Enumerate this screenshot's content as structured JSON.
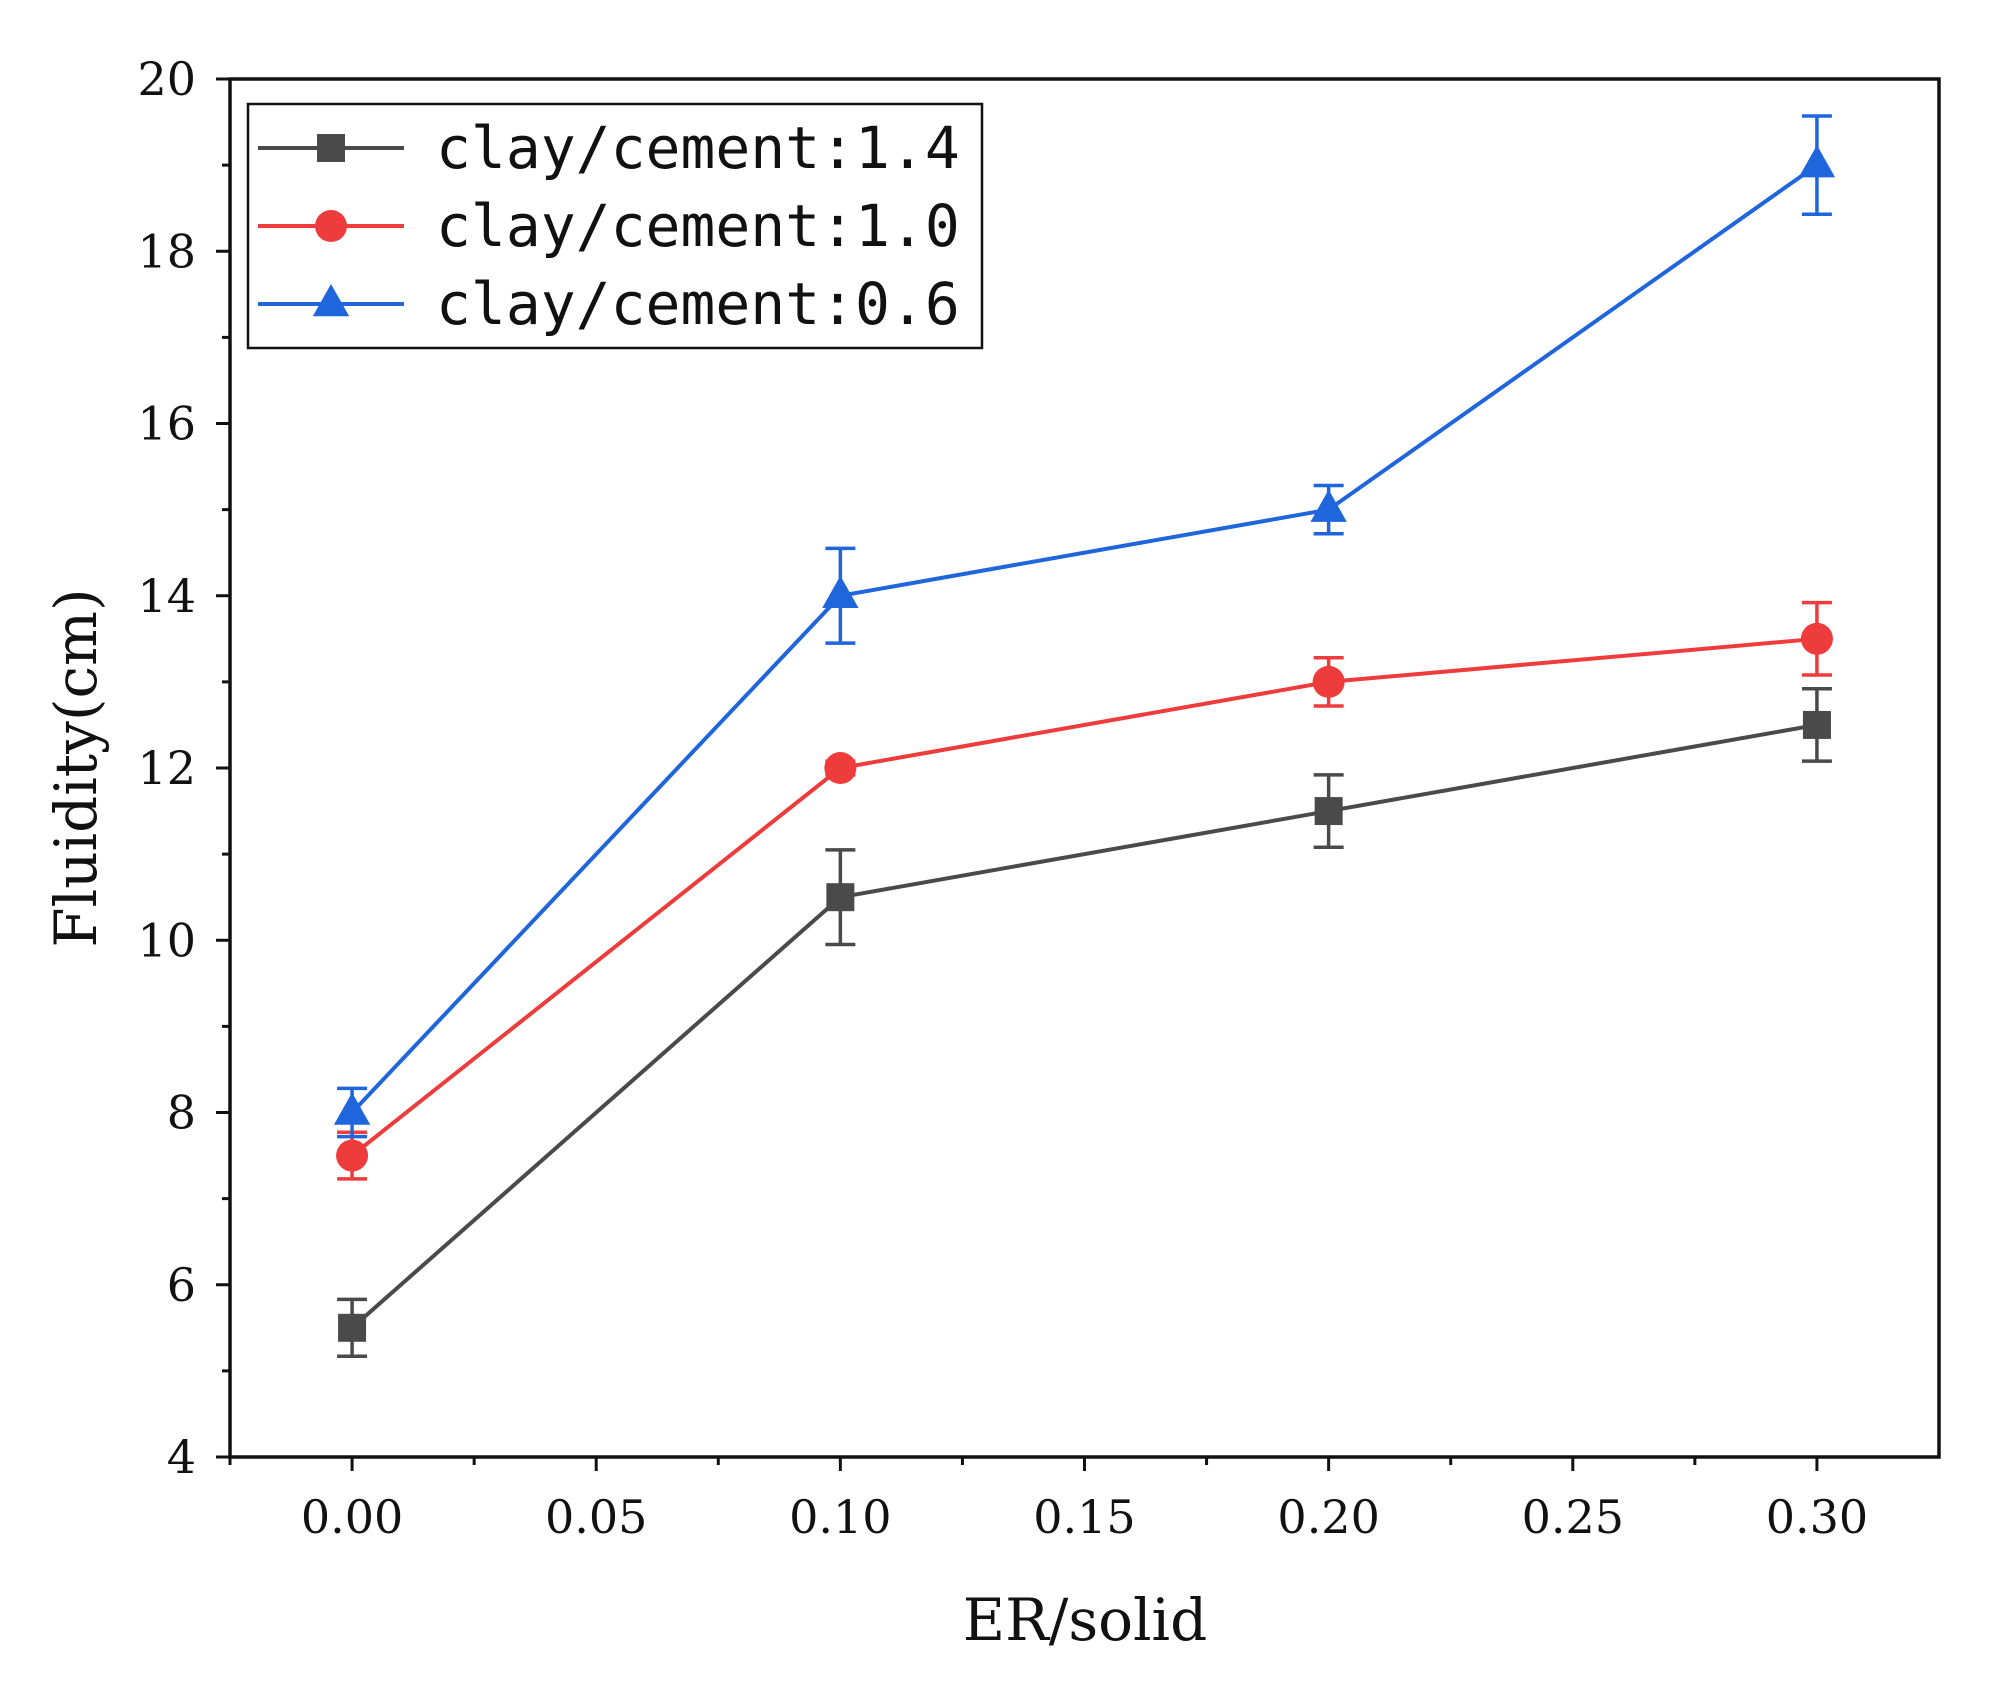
{
  "chart_data": {
    "type": "line",
    "title": "",
    "xlabel": "ER/solid",
    "ylabel": "Fluidity(cm)",
    "xlim": [
      -0.025,
      0.325
    ],
    "ylim": [
      4,
      20
    ],
    "x": [
      0.0,
      0.1,
      0.2,
      0.3
    ],
    "xticks": [
      0.0,
      0.05,
      0.1,
      0.15,
      0.2,
      0.25,
      0.3
    ],
    "xtick_labels": [
      "0.00",
      "0.05",
      "0.10",
      "0.15",
      "0.20",
      "0.25",
      "0.30"
    ],
    "yticks": [
      4,
      6,
      8,
      10,
      12,
      14,
      16,
      18,
      20
    ],
    "ytick_labels": [
      "4",
      "6",
      "8",
      "10",
      "12",
      "14",
      "16",
      "18",
      "20"
    ],
    "grid": false,
    "legend_position": "top-left",
    "series": [
      {
        "name": "clay/cement:1.4",
        "color": "#4a4a4a",
        "marker": "square",
        "values": [
          5.5,
          10.5,
          11.5,
          12.5
        ],
        "errors": [
          0.33,
          0.55,
          0.42,
          0.42
        ]
      },
      {
        "name": "clay/cement:1.0",
        "color": "#ee3b3b",
        "marker": "circle",
        "values": [
          7.5,
          12.0,
          13.0,
          13.5
        ],
        "errors": [
          0.27,
          0.08,
          0.28,
          0.42
        ]
      },
      {
        "name": "clay/cement:0.6",
        "color": "#1f66dc",
        "marker": "triangle",
        "values": [
          8.0,
          14.0,
          15.0,
          19.0
        ],
        "errors": [
          0.28,
          0.55,
          0.28,
          0.57
        ]
      }
    ]
  }
}
